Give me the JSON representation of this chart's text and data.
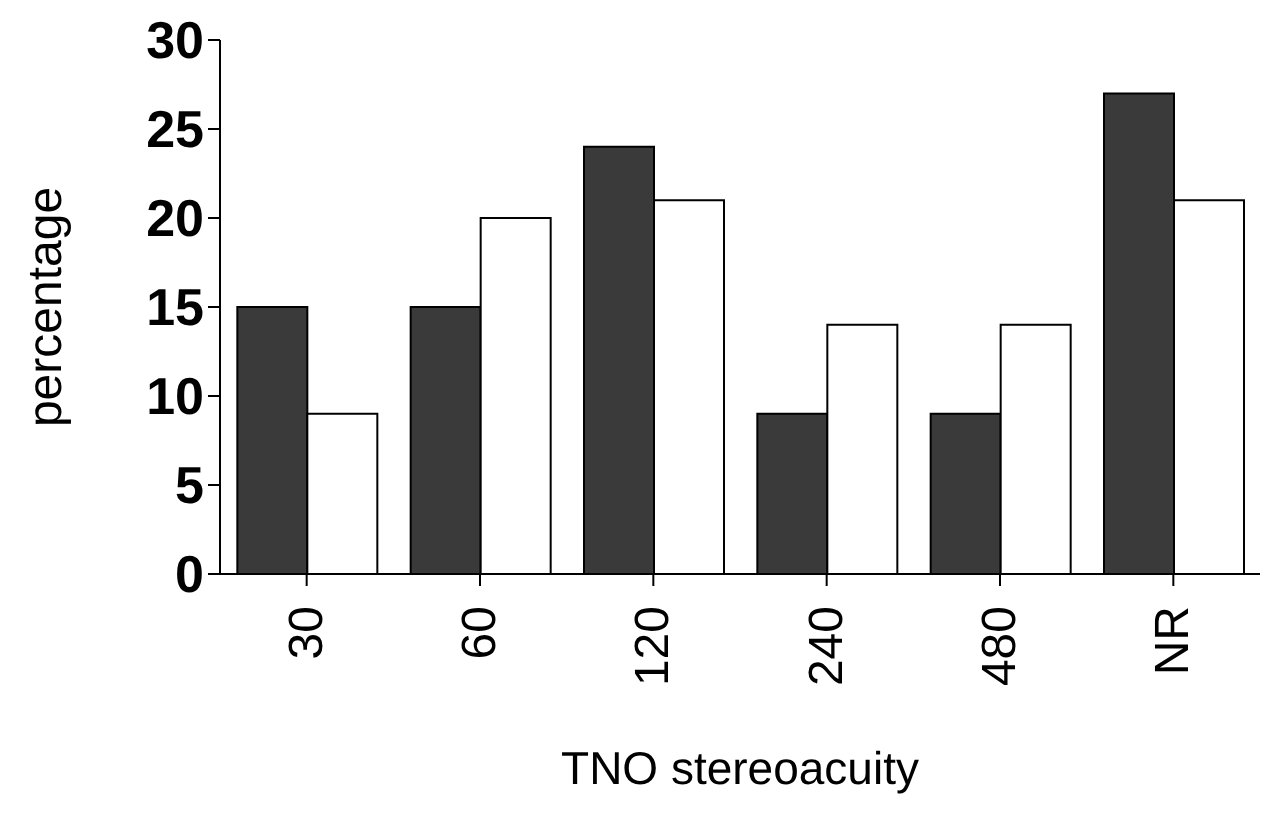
{
  "chart_data": {
    "type": "bar",
    "xlabel": "TNO stereoacuity",
    "ylabel": "percentage",
    "categories": [
      "30",
      "60",
      "120",
      "240",
      "480",
      "NR"
    ],
    "series": [
      {
        "color": "#3a3a3a",
        "values": [
          15,
          15,
          24,
          9,
          9,
          27
        ]
      },
      {
        "color": "#ffffff",
        "values": [
          9,
          20,
          21,
          14,
          14,
          21
        ]
      }
    ],
    "ylim": [
      0,
      30
    ],
    "yticks": [
      0,
      5,
      10,
      15,
      20,
      25,
      30
    ],
    "grid": false,
    "legend": false
  }
}
